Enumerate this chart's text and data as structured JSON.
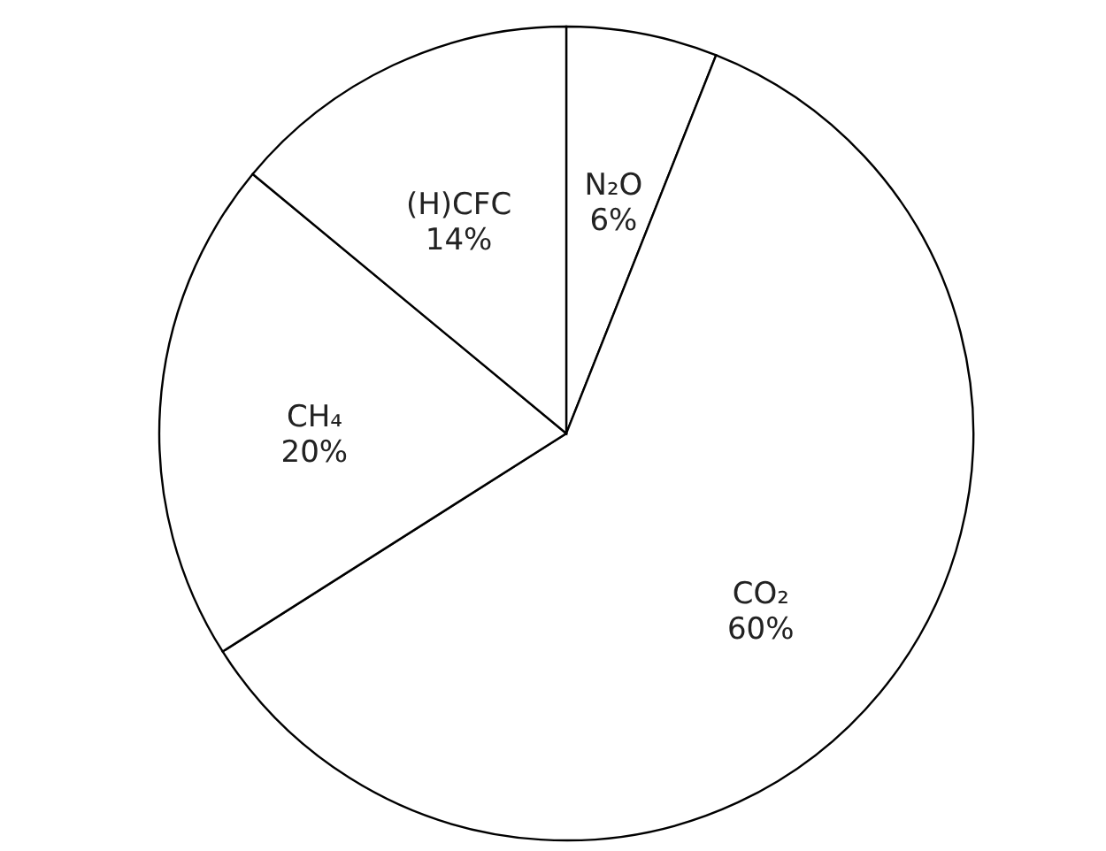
{
  "chart_data": {
    "type": "pie",
    "categories": [
      "N₂O",
      "CO₂",
      "CH₄",
      "(H)CFC"
    ],
    "values": [
      6,
      60,
      20,
      14
    ],
    "colors": [
      "#ffffff",
      "#ffffff",
      "#ffffff",
      "#ffffff"
    ],
    "value_labels": [
      "6%",
      "60%",
      "20%",
      "14%"
    ]
  }
}
